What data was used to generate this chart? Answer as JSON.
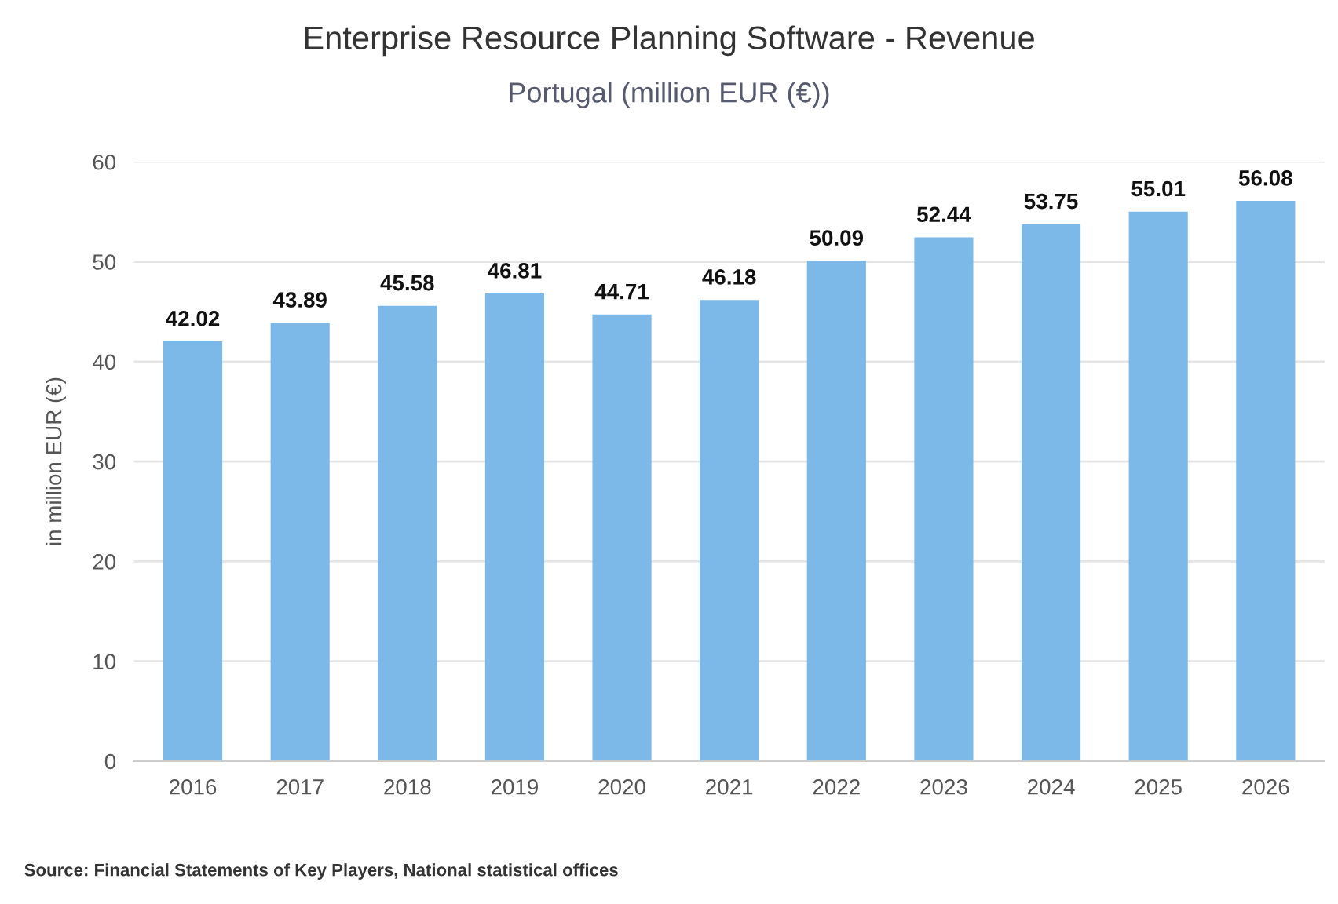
{
  "chart_data": {
    "type": "bar",
    "title": "Enterprise Resource Planning Software - Revenue",
    "subtitle": "Portugal (million EUR (€))",
    "ylabel": "in million EUR (€)",
    "categories": [
      "2016",
      "2017",
      "2018",
      "2019",
      "2020",
      "2021",
      "2022",
      "2023",
      "2024",
      "2025",
      "2026"
    ],
    "values": [
      42.02,
      43.89,
      45.58,
      46.81,
      44.71,
      46.18,
      50.09,
      52.44,
      53.75,
      55.01,
      56.08
    ],
    "color": "#7cb9e8",
    "ylim": [
      0,
      60
    ],
    "yticks": [
      0,
      10,
      20,
      30,
      40,
      50,
      60
    ],
    "grid": "y",
    "data_labels": true,
    "annotations": [
      "Source: Financial Statements of Key Players, National statistical offices"
    ]
  }
}
